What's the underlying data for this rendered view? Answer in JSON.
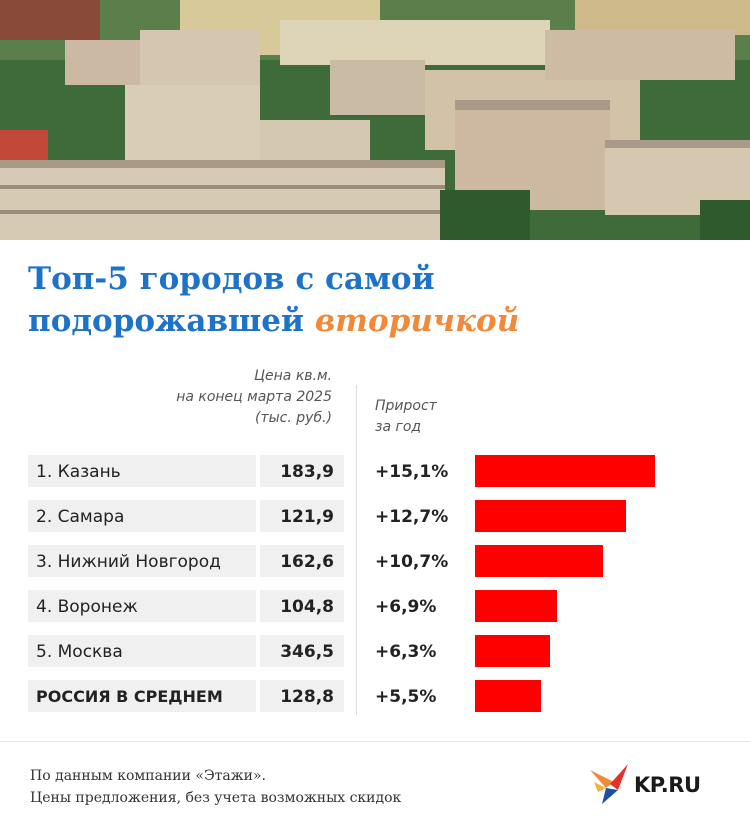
{
  "title": {
    "line1": "Топ-5 городов с самой",
    "line2_plain": "подорожавшей",
    "line2_accent": "вторичкой"
  },
  "headers": {
    "price": [
      "Цена кв.м.",
      "на конец марта 2025",
      "(тыс. руб.)"
    ],
    "growth": [
      "Прирост",
      "за год"
    ]
  },
  "chart_data": {
    "type": "bar",
    "categories": [
      "1. Казань",
      "2. Самара",
      "3. Нижний Новгород",
      "4. Воронеж",
      "5. Москва",
      "РОССИЯ В СРЕДНЕМ"
    ],
    "price_labels": [
      "183,9",
      "121,9",
      "162,6",
      "104,8",
      "346,5",
      "128,8"
    ],
    "growth_labels": [
      "+15,1%",
      "+12,7%",
      "+10,7%",
      "+6,9%",
      "+6,3%",
      "+5,5%"
    ],
    "values": [
      15.1,
      12.7,
      10.7,
      6.9,
      6.3,
      5.5
    ],
    "prices": [
      183.9,
      121.9,
      162.6,
      104.8,
      346.5,
      128.8
    ],
    "bar_color": "#ff0000"
  },
  "footer": {
    "line1": "По данным компании «Этажи».",
    "line2": "Цены предложения, без учета возможных скидок"
  },
  "logo": {
    "text": "KP.RU",
    "icon": "kp-bird-icon"
  },
  "colors": {
    "title": "#1e72c8",
    "accent": "#f0893a",
    "bar": "#ff0000"
  }
}
